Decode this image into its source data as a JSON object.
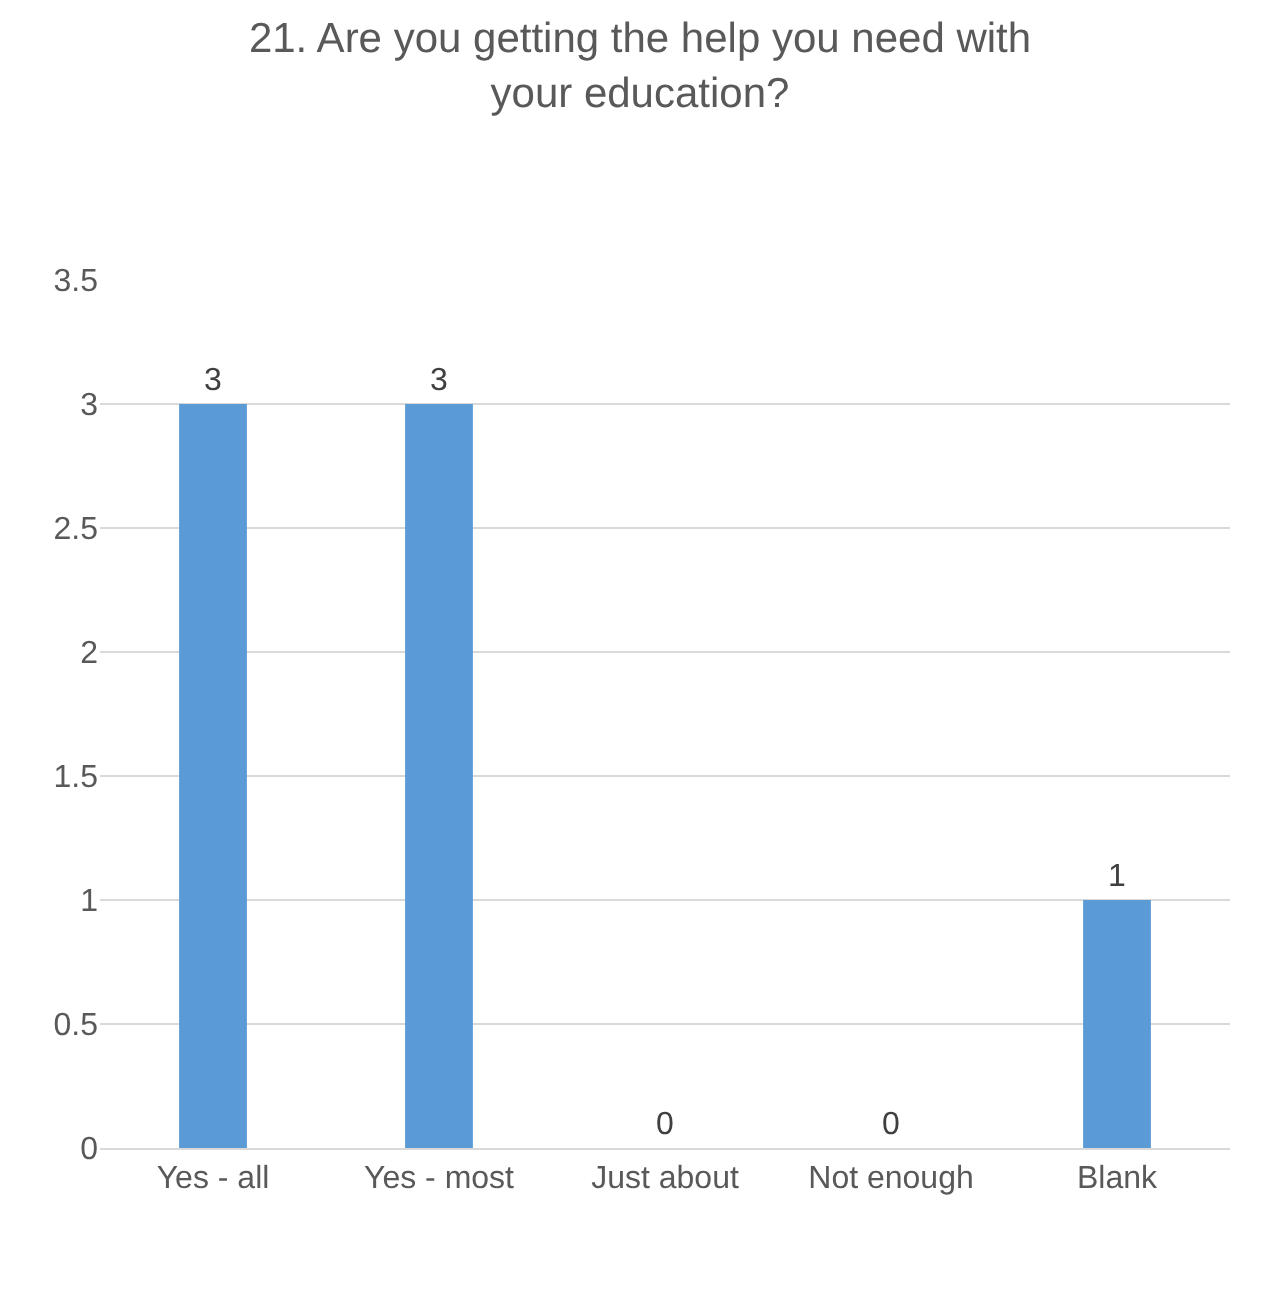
{
  "chart_data": {
    "type": "bar",
    "title": "21. Are you getting the help you need with your education?",
    "categories": [
      "Yes - all",
      "Yes - most",
      "Just about",
      "Not enough",
      "Blank"
    ],
    "values": [
      3,
      3,
      0,
      0,
      1
    ],
    "color": "#5b9bd5",
    "data_labels": true,
    "ylim": [
      0,
      3.5
    ],
    "yticks": [
      0,
      0.5,
      1,
      1.5,
      2,
      2.5,
      3,
      3.5
    ],
    "grid": "y"
  }
}
